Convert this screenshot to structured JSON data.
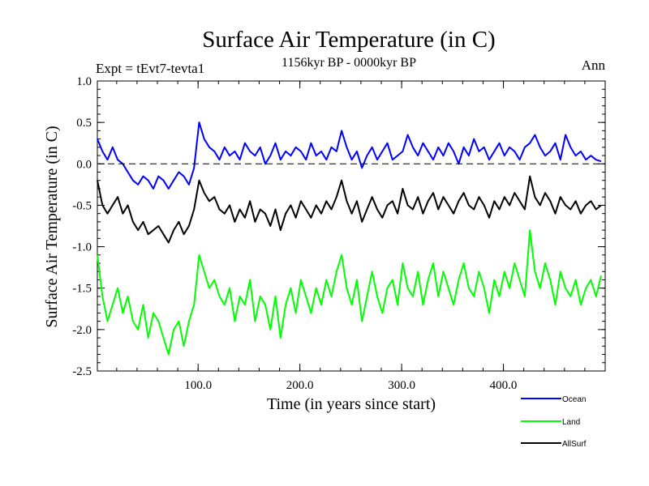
{
  "chart_data": {
    "type": "line",
    "title": "Surface Air Temperature (in C)",
    "subtitle": "1156kyr BP - 0000kyr BP",
    "left_label": "Expt = tEvt7-tevta1",
    "right_label": "Ann",
    "xlabel": "Time (in years since start)",
    "ylabel": "Surface Air Temperature (in C)",
    "xlim": [
      1,
      500
    ],
    "ylim": [
      -2.5,
      1.0
    ],
    "x_ticks": [
      100,
      200,
      300,
      400
    ],
    "x_tick_labels": [
      "100.0",
      "200.0",
      "300.0",
      "400.0"
    ],
    "y_ticks": [
      1.0,
      0.5,
      0.0,
      -0.5,
      -1.0,
      -1.5,
      -2.0,
      -2.5
    ],
    "y_tick_labels": [
      "1.0",
      "0.5",
      "0.0",
      "-0.5",
      "-1.0",
      "-1.5",
      "-2.0",
      "-2.5"
    ],
    "zero_line": 0.0,
    "legend_position": "bottom-right, outside",
    "series": [
      {
        "name": "Ocean",
        "color": "#0000ff",
        "x_start": 1,
        "x_step": 5,
        "values": [
          0.3,
          0.15,
          0.05,
          0.2,
          0.05,
          0.0,
          -0.1,
          -0.2,
          -0.25,
          -0.15,
          -0.2,
          -0.3,
          -0.15,
          -0.2,
          -0.3,
          -0.2,
          -0.1,
          -0.15,
          -0.25,
          -0.05,
          0.5,
          0.3,
          0.2,
          0.15,
          0.05,
          0.2,
          0.1,
          0.15,
          0.05,
          0.25,
          0.15,
          0.1,
          0.2,
          0.0,
          0.1,
          0.25,
          0.05,
          0.15,
          0.1,
          0.2,
          0.15,
          0.05,
          0.25,
          0.1,
          0.15,
          0.05,
          0.2,
          0.15,
          0.4,
          0.2,
          0.05,
          0.15,
          -0.05,
          0.1,
          0.2,
          0.05,
          0.15,
          0.25,
          0.05,
          0.1,
          0.15,
          0.35,
          0.2,
          0.1,
          0.25,
          0.15,
          0.05,
          0.2,
          0.1,
          0.25,
          0.15,
          0.0,
          0.2,
          0.1,
          0.3,
          0.15,
          0.2,
          0.05,
          0.15,
          0.25,
          0.1,
          0.2,
          0.15,
          0.05,
          0.2,
          0.25,
          0.35,
          0.2,
          0.1,
          0.15,
          0.25,
          0.05,
          0.35,
          0.2,
          0.1,
          0.15,
          0.05,
          0.1,
          0.05,
          0.03
        ]
      },
      {
        "name": "Land",
        "color": "#00ff00",
        "x_start": 1,
        "x_step": 5,
        "values": [
          -1.1,
          -1.6,
          -1.9,
          -1.7,
          -1.5,
          -1.8,
          -1.6,
          -1.9,
          -2.0,
          -1.7,
          -2.1,
          -1.8,
          -1.9,
          -2.1,
          -2.3,
          -2.0,
          -1.9,
          -2.2,
          -1.9,
          -1.7,
          -1.1,
          -1.3,
          -1.5,
          -1.4,
          -1.6,
          -1.7,
          -1.5,
          -1.9,
          -1.6,
          -1.7,
          -1.4,
          -1.9,
          -1.6,
          -1.7,
          -2.0,
          -1.6,
          -2.1,
          -1.7,
          -1.5,
          -1.8,
          -1.4,
          -1.6,
          -1.8,
          -1.5,
          -1.7,
          -1.4,
          -1.6,
          -1.3,
          -1.1,
          -1.5,
          -1.7,
          -1.4,
          -1.9,
          -1.6,
          -1.3,
          -1.6,
          -1.8,
          -1.5,
          -1.4,
          -1.7,
          -1.2,
          -1.5,
          -1.6,
          -1.3,
          -1.7,
          -1.4,
          -1.2,
          -1.6,
          -1.3,
          -1.5,
          -1.7,
          -1.4,
          -1.2,
          -1.5,
          -1.6,
          -1.3,
          -1.5,
          -1.8,
          -1.4,
          -1.6,
          -1.3,
          -1.5,
          -1.2,
          -1.4,
          -1.6,
          -0.8,
          -1.3,
          -1.5,
          -1.2,
          -1.4,
          -1.7,
          -1.3,
          -1.5,
          -1.6,
          -1.4,
          -1.7,
          -1.5,
          -1.4,
          -1.6,
          -1.35
        ]
      },
      {
        "name": "AllSurf",
        "color": "#000000",
        "x_start": 1,
        "x_step": 5,
        "values": [
          -0.2,
          -0.5,
          -0.6,
          -0.5,
          -0.4,
          -0.6,
          -0.5,
          -0.7,
          -0.8,
          -0.7,
          -0.85,
          -0.8,
          -0.75,
          -0.85,
          -0.95,
          -0.8,
          -0.7,
          -0.85,
          -0.75,
          -0.55,
          -0.2,
          -0.35,
          -0.45,
          -0.4,
          -0.55,
          -0.6,
          -0.5,
          -0.7,
          -0.55,
          -0.65,
          -0.45,
          -0.7,
          -0.55,
          -0.6,
          -0.75,
          -0.55,
          -0.8,
          -0.6,
          -0.5,
          -0.65,
          -0.45,
          -0.55,
          -0.65,
          -0.5,
          -0.6,
          -0.45,
          -0.55,
          -0.4,
          -0.2,
          -0.45,
          -0.6,
          -0.45,
          -0.7,
          -0.55,
          -0.4,
          -0.55,
          -0.65,
          -0.5,
          -0.45,
          -0.6,
          -0.3,
          -0.5,
          -0.55,
          -0.4,
          -0.6,
          -0.45,
          -0.35,
          -0.55,
          -0.4,
          -0.5,
          -0.6,
          -0.45,
          -0.35,
          -0.5,
          -0.55,
          -0.4,
          -0.5,
          -0.65,
          -0.45,
          -0.55,
          -0.4,
          -0.5,
          -0.35,
          -0.45,
          -0.55,
          -0.15,
          -0.4,
          -0.5,
          -0.35,
          -0.45,
          -0.6,
          -0.4,
          -0.5,
          -0.55,
          -0.45,
          -0.6,
          -0.5,
          -0.45,
          -0.55,
          -0.5
        ]
      }
    ]
  }
}
